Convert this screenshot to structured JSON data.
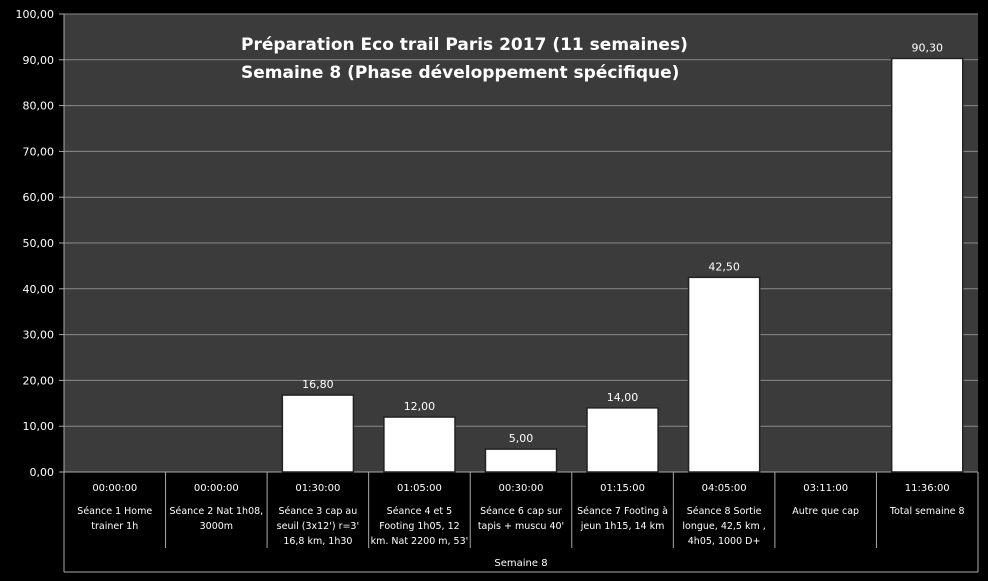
{
  "chart_data": {
    "type": "bar",
    "title": "Préparation Eco trail Paris 2017 (11 semaines)",
    "subtitle": "Semaine 8 (Phase développement spécifique)",
    "group_label": "Semaine 8",
    "ylim": [
      0,
      100
    ],
    "yticks": [
      "0,00",
      "10,00",
      "20,00",
      "30,00",
      "40,00",
      "50,00",
      "60,00",
      "70,00",
      "80,00",
      "90,00",
      "100,00"
    ],
    "grid": true,
    "categories": [
      {
        "time": "00:00:00",
        "label": [
          "Séance 1 Home",
          "trainer 1h"
        ]
      },
      {
        "time": "00:00:00",
        "label": [
          "Séance 2 Nat 1h08,",
          "3000m"
        ]
      },
      {
        "time": "01:30:00",
        "label": [
          "Séance 3 cap au",
          "seuil (3x12') r=3'",
          "16,8 km, 1h30"
        ]
      },
      {
        "time": "01:05:00",
        "label": [
          "Séance 4 et 5",
          "Footing 1h05, 12",
          "km. Nat 2200 m, 53'"
        ]
      },
      {
        "time": "00:30:00",
        "label": [
          "Séance 6 cap sur",
          "tapis + muscu 40'"
        ]
      },
      {
        "time": "01:15:00",
        "label": [
          "Séance 7 Footing à",
          "jeun 1h15, 14 km"
        ]
      },
      {
        "time": "04:05:00",
        "label": [
          "Séance 8 Sortie",
          "longue, 42,5 km ,",
          "4h05, 1000 D+"
        ]
      },
      {
        "time": "03:11:00",
        "label": [
          "Autre que cap"
        ]
      },
      {
        "time": "11:36:00",
        "label": [
          "Total semaine 8"
        ]
      }
    ],
    "values": [
      null,
      null,
      16.8,
      12.0,
      5.0,
      14.0,
      42.5,
      null,
      90.3
    ],
    "value_labels": [
      "",
      "",
      "16,80",
      "12,00",
      "5,00",
      "14,00",
      "42,50",
      "",
      "90,30"
    ],
    "colors": {
      "background": "#000000",
      "plot_area": "#3b3b3b",
      "bar": "#ffffff",
      "text": "#ffffff",
      "grid": "#8a8a8a"
    }
  }
}
